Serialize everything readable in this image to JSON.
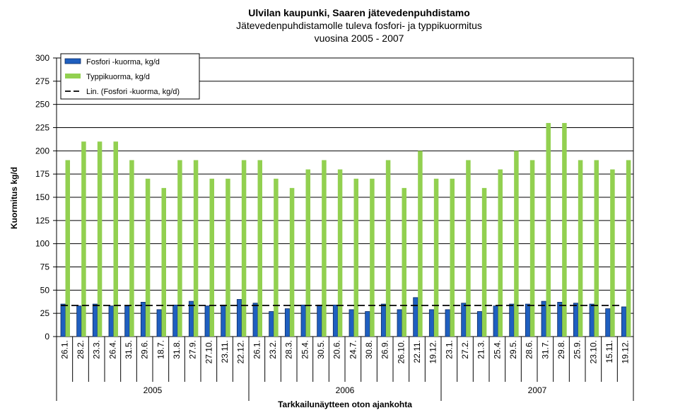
{
  "chart_data": {
    "type": "bar",
    "title": "Ulvilan kaupunki, Saaren jätevedenpuhdistamo",
    "subtitle": "Jätevedenpuhdistamolle tuleva fosfori- ja typpikuormitus",
    "subtitle2": "vuosina 2005 - 2007",
    "ylabel": "Kuormitus kg/d",
    "xlabel": "Tarkkailunäytteen  oton ajankohta",
    "ylim": [
      0,
      300
    ],
    "yticks": [
      0,
      25,
      50,
      75,
      100,
      125,
      150,
      175,
      200,
      225,
      250,
      275,
      300
    ],
    "grid": true,
    "legend_position": "top-left",
    "categories": [
      "26.1.",
      "28.2.",
      "23.3.",
      "26.4.",
      "31.5.",
      "29.6.",
      "18.7.",
      "31.8.",
      "27.9.",
      "27.10.",
      "23.11.",
      "22.12.",
      "26.1.",
      "23.2.",
      "28.3.",
      "25.4.",
      "30.5.",
      "20.6.",
      "24.7.",
      "30.8.",
      "26.9.",
      "26.10.",
      "22.11.",
      "19.12.",
      "23.1.",
      "27.2.",
      "21.3.",
      "25.4.",
      "29.5.",
      "28.6.",
      "31.7.",
      "29.8.",
      "25.9.",
      "23.10.",
      "15.11.",
      "19.12."
    ],
    "groups": [
      {
        "label": "2005",
        "count": 12
      },
      {
        "label": "2006",
        "count": 12
      },
      {
        "label": "2007",
        "count": 12
      }
    ],
    "series": [
      {
        "name": "Fosfori -kuorma, kg/d",
        "color": "#1f5fbf",
        "values": [
          35,
          33,
          35,
          33,
          33,
          37,
          29,
          34,
          38,
          33,
          34,
          40,
          36,
          27,
          30,
          34,
          34,
          34,
          29,
          27,
          35,
          29,
          42,
          29,
          29,
          36,
          27,
          33,
          35,
          35,
          38,
          37,
          36,
          35,
          30,
          32
        ]
      },
      {
        "name": "Typpikuorma, kg/d",
        "color": "#92d050",
        "values": [
          190,
          210,
          210,
          210,
          190,
          170,
          160,
          190,
          190,
          170,
          170,
          190,
          190,
          170,
          160,
          180,
          190,
          180,
          170,
          170,
          190,
          160,
          200,
          170,
          170,
          190,
          160,
          180,
          200,
          190,
          230,
          230,
          190,
          190,
          180,
          190
        ]
      }
    ],
    "trendline": {
      "name": "Lin. (Fosfori -kuorma, kg/d)",
      "start": 33.5,
      "end": 33.5,
      "color": "#000000",
      "style": "dashed"
    }
  }
}
